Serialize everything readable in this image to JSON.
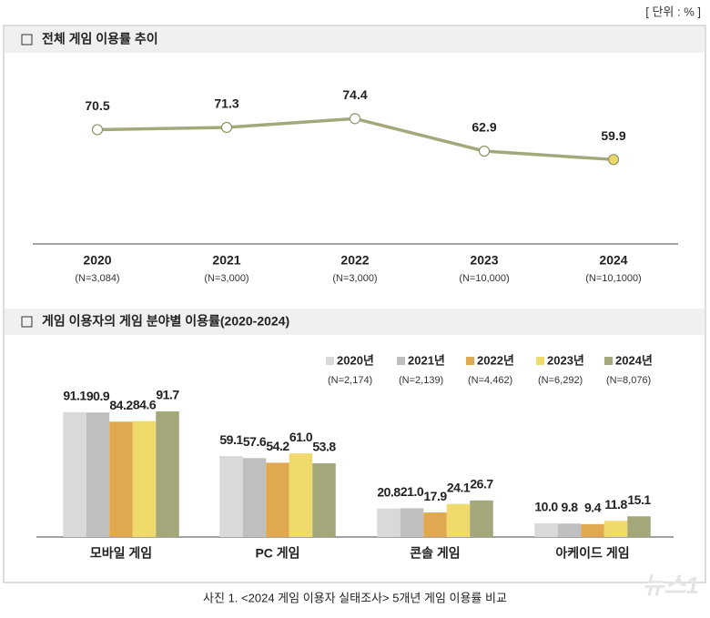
{
  "unit_label": "[ 단위 : % ]",
  "caption": "사진 1. <2024 게임 이용자 실태조사> 5개년 게임 이용률 비교",
  "watermark": "뉴스1",
  "chart_data": [
    {
      "type": "line",
      "title": "전체 게임 이용률 추이",
      "categories": [
        "2020",
        "2021",
        "2022",
        "2023",
        "2024"
      ],
      "sample_sizes": [
        "(N=3,084)",
        "(N=3,000)",
        "(N=3,000)",
        "(N=10,000)",
        "(N=10,1000)"
      ],
      "values": [
        70.5,
        71.3,
        74.4,
        62.9,
        59.9
      ],
      "color": "#a4a77a",
      "highlight_color": "#e9d96a",
      "ylim": [
        30,
        80
      ]
    },
    {
      "type": "bar",
      "title": "게임 이용자의 게임 분야별 이용률(2020-2024)",
      "categories": [
        "모바일 게임",
        "PC 게임",
        "콘솔 게임",
        "아케이드 게임"
      ],
      "series": [
        {
          "name": "2020년",
          "sample_size": "(N=2,174)",
          "color": "#d9d9d9",
          "values": [
            91.1,
            59.1,
            20.8,
            10.0
          ],
          "value_labels": [
            "91.1",
            "59.1",
            "20.8",
            "10.0"
          ]
        },
        {
          "name": "2021년",
          "sample_size": "(N=2,139)",
          "color": "#bfbfbf",
          "values": [
            90.9,
            57.6,
            21.0,
            9.8
          ],
          "value_labels": [
            "90.9",
            "57.6",
            "21.0",
            "9.8"
          ]
        },
        {
          "name": "2022년",
          "sample_size": "(N=4,462)",
          "color": "#e1a94f",
          "values": [
            84.2,
            54.2,
            17.9,
            9.4
          ],
          "value_labels": [
            "84.2",
            "54.2",
            "17.9",
            "9.4"
          ]
        },
        {
          "name": "2023년",
          "sample_size": "(N=6,292)",
          "color": "#f0da6b",
          "values": [
            84.6,
            61.0,
            24.1,
            11.8
          ],
          "value_labels": [
            "84.6",
            "61.0",
            "24.1",
            "11.8"
          ]
        },
        {
          "name": "2024년",
          "sample_size": "(N=8,076)",
          "color": "#a4a77a",
          "values": [
            91.7,
            53.8,
            26.7,
            15.1
          ],
          "value_labels": [
            "91.7",
            "53.8",
            "26.7",
            "15.1"
          ]
        }
      ],
      "ylim": [
        0,
        100
      ]
    }
  ]
}
